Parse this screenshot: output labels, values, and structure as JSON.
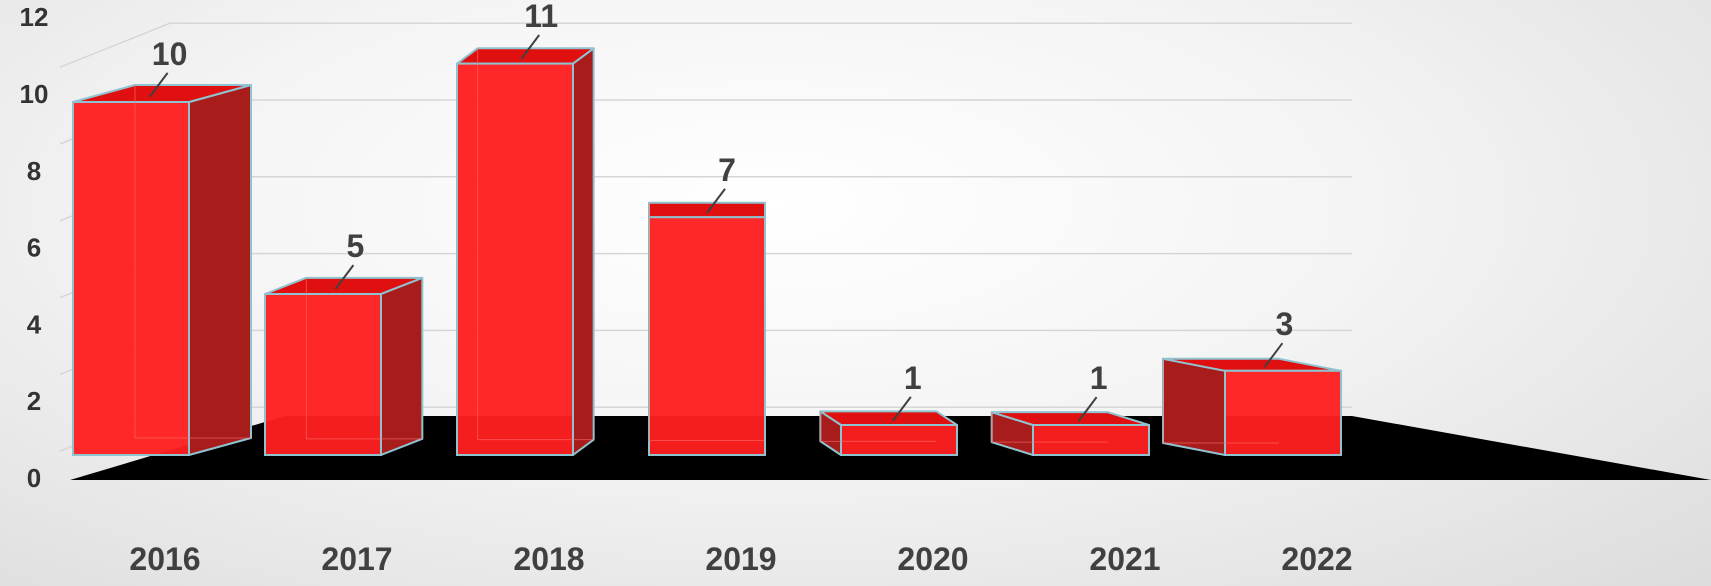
{
  "chart_data": {
    "type": "bar",
    "style": "3d-column",
    "categories": [
      "2016",
      "2017",
      "2018",
      "2019",
      "2020",
      "2021",
      "2022"
    ],
    "values": [
      10,
      5,
      11,
      7,
      1,
      1,
      3
    ],
    "data_labels": [
      "10",
      "5",
      "11",
      "7",
      "1",
      "1",
      "3"
    ],
    "y_ticks": [
      "0",
      "2",
      "4",
      "6",
      "8",
      "10",
      "12"
    ],
    "ylim": [
      0,
      12
    ],
    "grid": true,
    "legend": "none",
    "colors": {
      "bar_front": "#ff1f1f",
      "bar_side": "#a81c1c",
      "bar_top": "#e01010",
      "bar_edge": "#8fc3cf",
      "floor": "#000000",
      "gridline": "#d6d6d6",
      "label_text": "#404040"
    }
  }
}
